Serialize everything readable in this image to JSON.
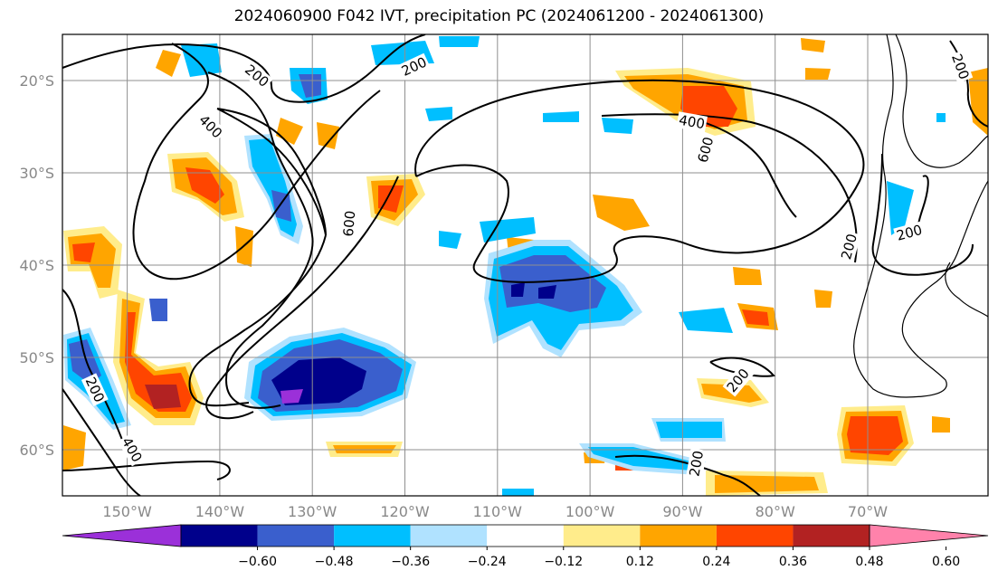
{
  "title": "2024060900 F042 IVT, precipitation PC (2024061200 - 2024061300)",
  "map": {
    "lon_range": [
      -157,
      -57
    ],
    "lat_range": [
      -65,
      -15
    ],
    "lon_ticks": [
      {
        "value": -150,
        "label": "150°W"
      },
      {
        "value": -140,
        "label": "140°W"
      },
      {
        "value": -130,
        "label": "130°W"
      },
      {
        "value": -120,
        "label": "120°W"
      },
      {
        "value": -110,
        "label": "110°W"
      },
      {
        "value": -100,
        "label": "100°W"
      },
      {
        "value": -90,
        "label": "90°W"
      },
      {
        "value": -80,
        "label": "80°W"
      },
      {
        "value": -70,
        "label": "70°W"
      }
    ],
    "lat_ticks": [
      {
        "value": -20,
        "label": "20°S"
      },
      {
        "value": -30,
        "label": "30°S"
      },
      {
        "value": -40,
        "label": "40°S"
      },
      {
        "value": -50,
        "label": "50°S"
      },
      {
        "value": -60,
        "label": "60°S"
      }
    ],
    "grid": true
  },
  "contour_labels": [
    {
      "text": "200",
      "lon": -136,
      "lat": -19.5,
      "rot": 40
    },
    {
      "text": "200",
      "lon": -119,
      "lat": -18.5,
      "rot": -25
    },
    {
      "text": "400",
      "lon": -141,
      "lat": -25,
      "rot": 45
    },
    {
      "text": "600",
      "lon": -126,
      "lat": -35.5,
      "rot": -85
    },
    {
      "text": "400",
      "lon": -89,
      "lat": -24.5,
      "rot": 10
    },
    {
      "text": "600",
      "lon": -87.5,
      "lat": -27.5,
      "rot": -75
    },
    {
      "text": "200",
      "lon": -60,
      "lat": -18.5,
      "rot": 70
    },
    {
      "text": "200",
      "lon": -72,
      "lat": -38,
      "rot": -75
    },
    {
      "text": "200",
      "lon": -65.5,
      "lat": -36.5,
      "rot": -15
    },
    {
      "text": "200",
      "lon": -153.5,
      "lat": -53.5,
      "rot": 65
    },
    {
      "text": "400",
      "lon": -149.5,
      "lat": -60,
      "rot": 60
    },
    {
      "text": "200",
      "lon": -84,
      "lat": -52.5,
      "rot": -50
    },
    {
      "text": "200",
      "lon": -88.5,
      "lat": -61.5,
      "rot": -80
    }
  ],
  "colorbar": {
    "ticks": [
      "−0.60",
      "−0.48",
      "−0.36",
      "−0.24",
      "−0.12",
      "0.12",
      "0.24",
      "0.36",
      "0.48",
      "0.60"
    ],
    "colors": [
      "#9b30d9",
      "#00008b",
      "#3a5fcd",
      "#00bfff",
      "#b0e2ff",
      "#ffffff",
      "#ffec8b",
      "#ffa500",
      "#ff4500",
      "#b22222",
      "#ff82ab"
    ]
  }
}
